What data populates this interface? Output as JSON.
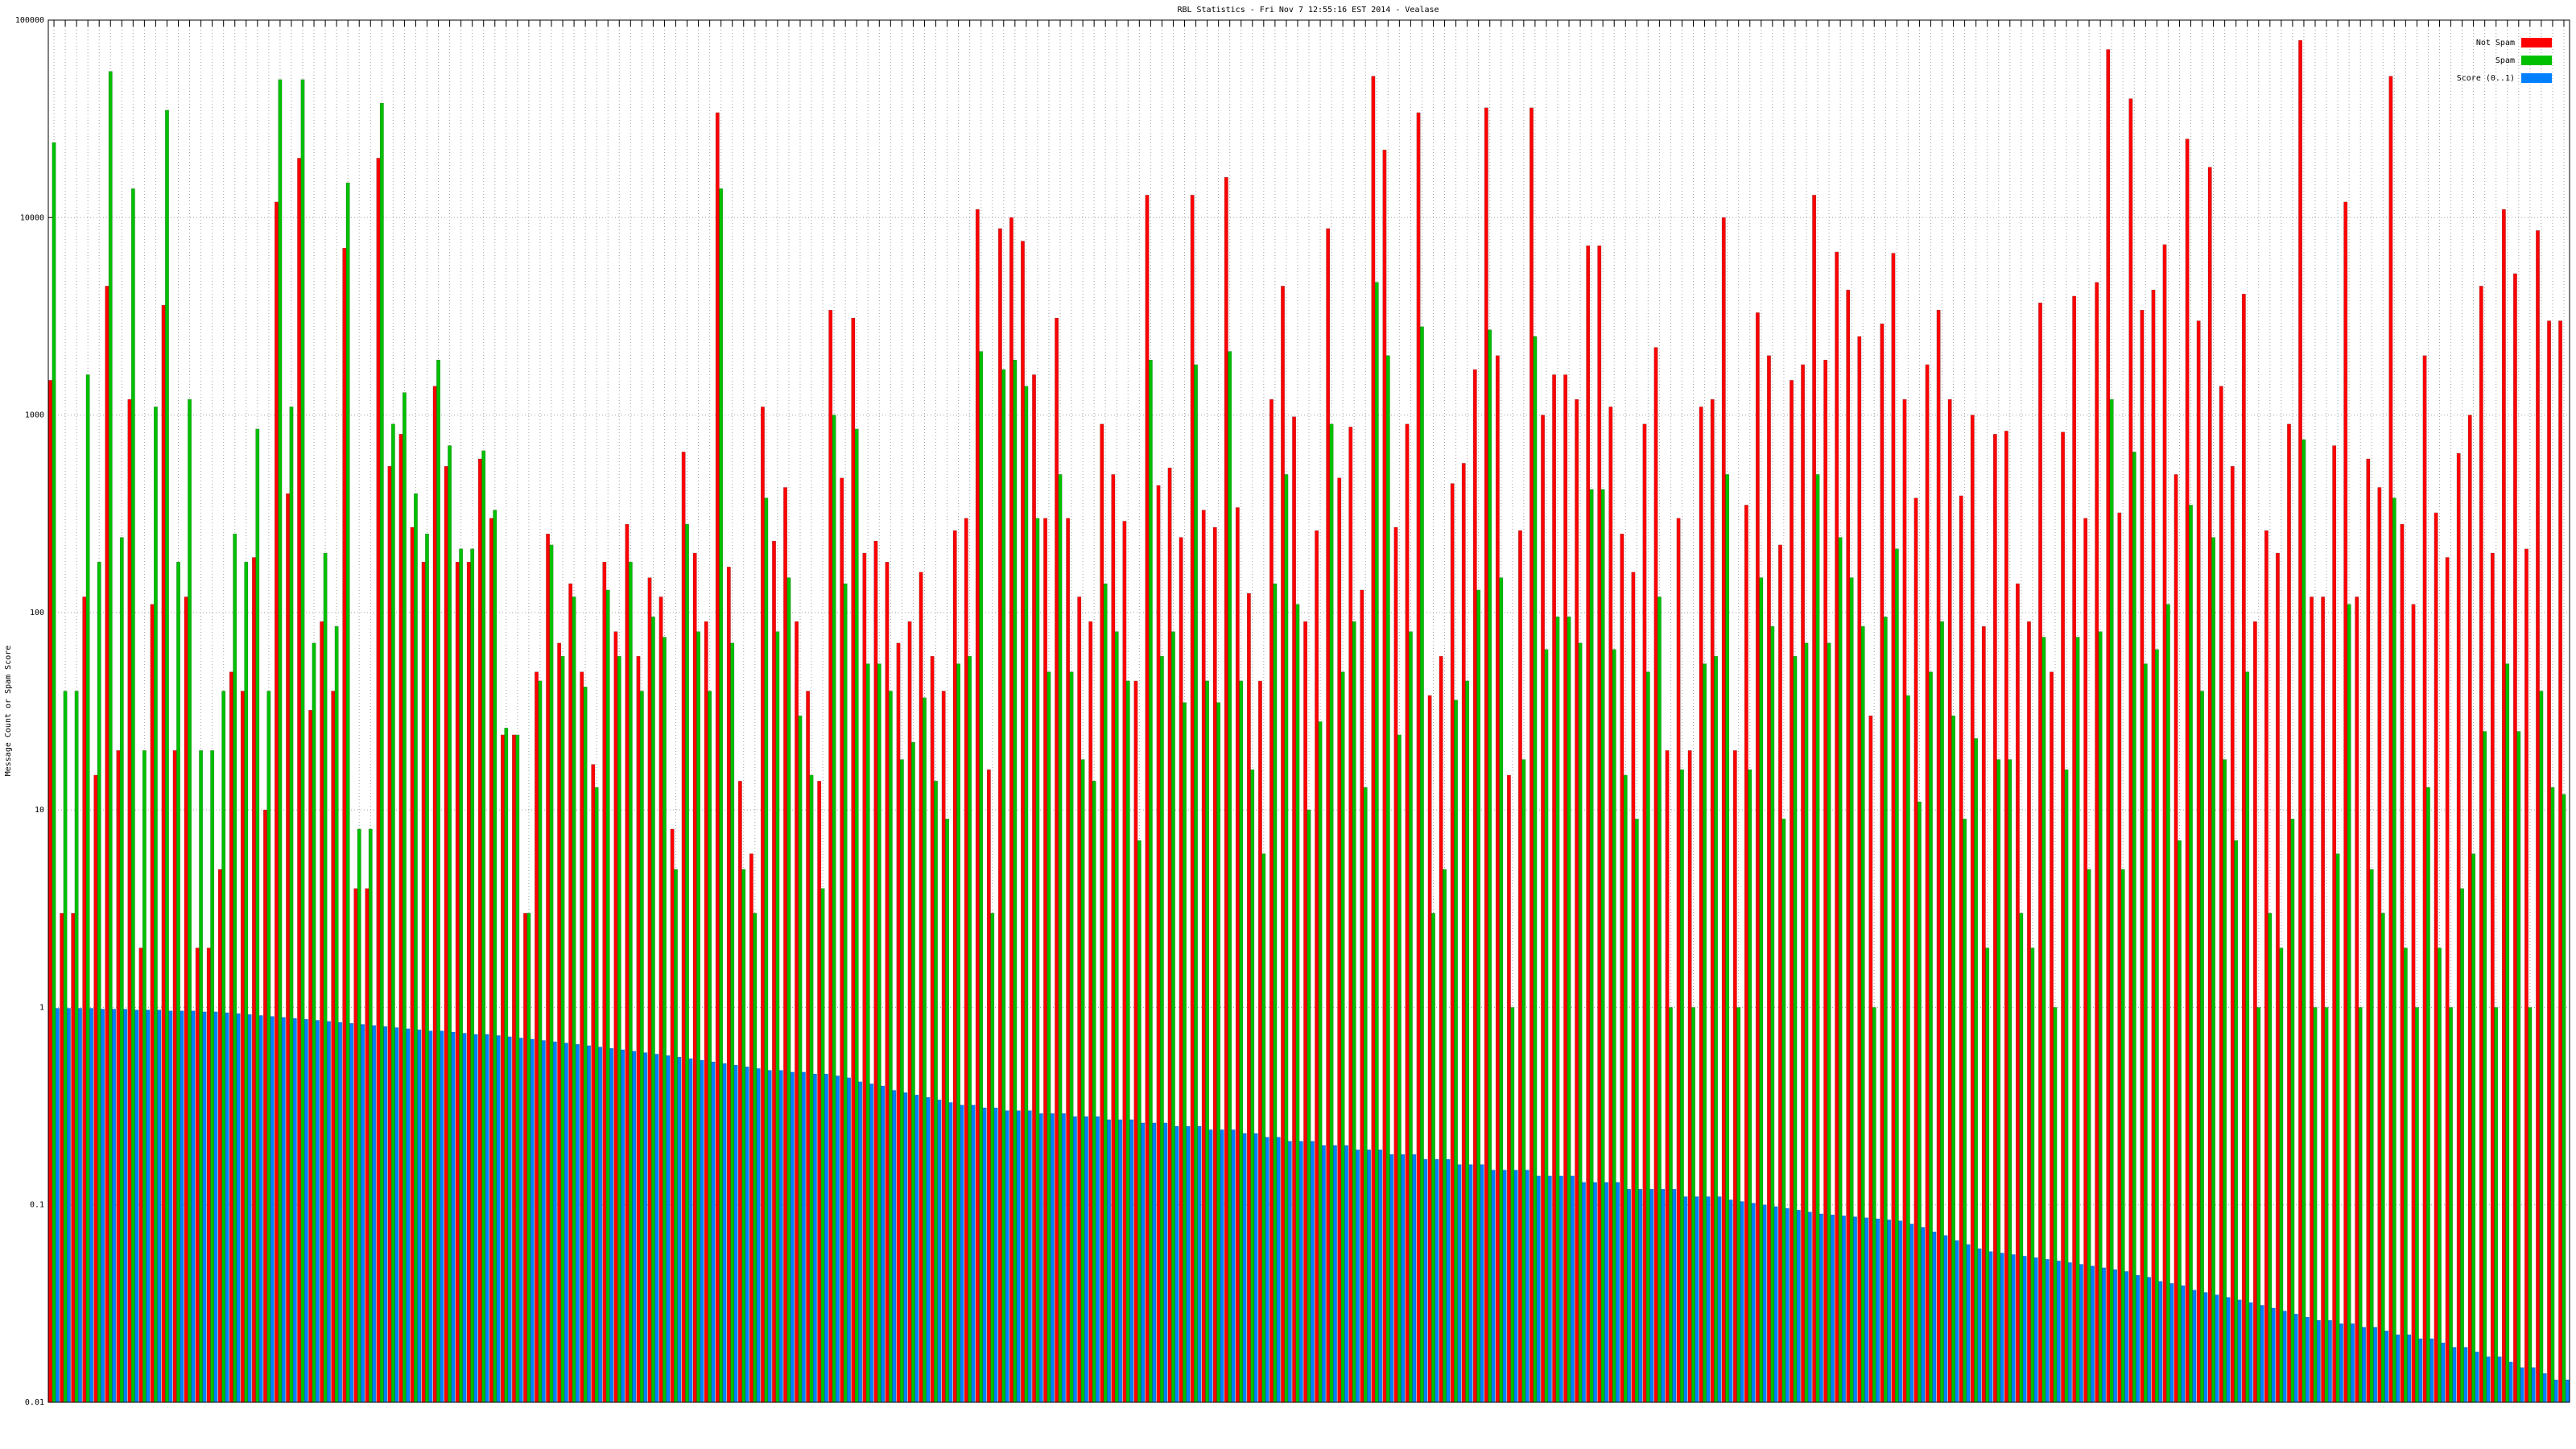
{
  "chart_data": {
    "type": "bar",
    "title": "RBL Statistics - Fri Nov  7 12:55:16 EST 2014 - Vealase",
    "y_label": "Message Count or Spam Score",
    "log_scale": true,
    "grid": true,
    "legend": "upper right",
    "ylim": [
      0.01,
      100000
    ],
    "yticks": [
      0.01,
      0.1,
      1,
      10,
      100,
      1000,
      10000,
      100000
    ],
    "categories": [
      null,
      null,
      null,
      null,
      null,
      null,
      null,
      null,
      null,
      null,
      null,
      null,
      null,
      null,
      null,
      null,
      null,
      null,
      null,
      null,
      null,
      null,
      null,
      null,
      null,
      null,
      null,
      null,
      null,
      null,
      null,
      null,
      null,
      null,
      null,
      null,
      null,
      null,
      null,
      null,
      null,
      null,
      null,
      null,
      null,
      null,
      null,
      null,
      null,
      null,
      null,
      null,
      null,
      null,
      null,
      null,
      null,
      null,
      null,
      null,
      null,
      null,
      null,
      null,
      null,
      null,
      null,
      null,
      null,
      null,
      null,
      null,
      null,
      null,
      null,
      null,
      null,
      null,
      null,
      null,
      null,
      null,
      null,
      null,
      null,
      null,
      null,
      null,
      null,
      null,
      null,
      null,
      null,
      null,
      null,
      null,
      null,
      null,
      null,
      null,
      null,
      null,
      null,
      null,
      null,
      null,
      null,
      null,
      null,
      null,
      null,
      null,
      null,
      null,
      null,
      null,
      null,
      null,
      null,
      null,
      null,
      null,
      null,
      null,
      null,
      null,
      null,
      null,
      null,
      null,
      null,
      null,
      null,
      null,
      null,
      null,
      null,
      null,
      null,
      null,
      null,
      null,
      null,
      null,
      null,
      null,
      null,
      null,
      null,
      null,
      null,
      null,
      null,
      null,
      null,
      null,
      null,
      null,
      null,
      null,
      null,
      null,
      null,
      null,
      null,
      null,
      null,
      null,
      null,
      null,
      null,
      null,
      null,
      null,
      null,
      null,
      null,
      null,
      null,
      null,
      null,
      null,
      null,
      null,
      null,
      null,
      null,
      null,
      null,
      null,
      null,
      null,
      null,
      null,
      null,
      null,
      null,
      null,
      null,
      null,
      null,
      null,
      null,
      null,
      null,
      null,
      null,
      null,
      null,
      null,
      null,
      null,
      null,
      null,
      null,
      null,
      null,
      null,
      null,
      null,
      null,
      null,
      null
    ],
    "series": [
      {
        "name": "Not Spam",
        "color": "#ff0000",
        "values": [
          1500,
          3,
          3,
          120,
          15,
          4500,
          20,
          1200,
          2,
          110,
          3600,
          20,
          120,
          2,
          2,
          5,
          50,
          40,
          190,
          10,
          12000,
          400,
          20000,
          32,
          90,
          40,
          7000,
          4,
          4,
          20000,
          550,
          800,
          270,
          180,
          1400,
          550,
          180,
          180,
          600,
          300,
          24,
          24,
          3,
          50,
          250,
          70,
          140,
          50,
          17,
          180,
          80,
          280,
          60,
          150,
          120,
          8,
          650,
          200,
          90,
          34000,
          170,
          14,
          6,
          1100,
          230,
          430,
          90,
          40,
          14,
          3400,
          480,
          3100,
          200,
          230,
          180,
          70,
          90,
          160,
          60,
          40,
          260,
          300,
          11000,
          16,
          8800,
          10000,
          7600,
          1600,
          300,
          3100,
          300,
          120,
          90,
          900,
          500,
          290,
          45,
          13000,
          440,
          540,
          240,
          13000,
          330,
          270,
          16000,
          340,
          125,
          45,
          1200,
          4500,
          980,
          90,
          260,
          8800,
          480,
          870,
          130,
          52000,
          22000,
          270,
          900,
          34000,
          38,
          60,
          450,
          570,
          1700,
          36000,
          2000,
          15,
          260,
          36000,
          1000,
          1600,
          1600,
          1200,
          7200,
          7200,
          1100,
          250,
          160,
          900,
          2200,
          20,
          300,
          20,
          1100,
          1200,
          10000,
          20,
          350,
          3300,
          2000,
          220,
          1500,
          1800,
          13000,
          1900,
          6700,
          4300,
          2500,
          30,
          2900,
          6600,
          1200,
          380,
          1800,
          3400,
          1200,
          390,
          1000,
          85,
          800,
          830,
          140,
          90,
          3700,
          50,
          820,
          4000,
          300,
          4700,
          71000,
          320,
          40000,
          3400,
          4300,
          7300,
          500,
          25000,
          3000,
          18000,
          1400,
          550,
          4100,
          90,
          260,
          200,
          900,
          79000,
          120,
          120,
          700,
          12000,
          120,
          600,
          430,
          52000,
          280,
          110,
          2000,
          320,
          190,
          640,
          1000,
          4500,
          200,
          11000,
          5200,
          210,
          8600,
          3000,
          3000
        ]
      },
      {
        "name": "Spam",
        "color": "#00c000",
        "values": [
          24000,
          40,
          40,
          1600,
          180,
          55000,
          240,
          14000,
          20,
          1100,
          35000,
          180,
          1200,
          20,
          20,
          40,
          250,
          180,
          850,
          40,
          50000,
          1100,
          50000,
          70,
          200,
          85,
          15000,
          8,
          8,
          38000,
          900,
          1300,
          400,
          250,
          1900,
          700,
          210,
          210,
          660,
          330,
          26,
          24,
          3,
          45,
          220,
          60,
          120,
          42,
          13,
          130,
          60,
          180,
          40,
          95,
          75,
          5,
          280,
          80,
          40,
          14000,
          70,
          5,
          3,
          380,
          80,
          150,
          30,
          15,
          4,
          1000,
          140,
          850,
          55,
          55,
          40,
          18,
          22,
          37,
          14,
          9,
          55,
          60,
          2100,
          3,
          1700,
          1900,
          1400,
          300,
          50,
          500,
          50,
          18,
          14,
          140,
          80,
          45,
          7,
          1900,
          60,
          80,
          35,
          1800,
          45,
          35,
          2100,
          45,
          16,
          6,
          140,
          500,
          110,
          10,
          28,
          900,
          50,
          90,
          13,
          4700,
          2000,
          24,
          80,
          2800,
          3,
          5,
          36,
          45,
          130,
          2700,
          150,
          1,
          18,
          2500,
          65,
          95,
          95,
          70,
          420,
          420,
          65,
          15,
          9,
          50,
          120,
          1,
          16,
          1,
          55,
          60,
          500,
          1,
          16,
          150,
          85,
          9,
          60,
          70,
          500,
          70,
          240,
          150,
          85,
          1,
          95,
          210,
          38,
          11,
          50,
          90,
          30,
          9,
          23,
          2,
          18,
          18,
          3,
          2,
          75,
          1,
          16,
          75,
          5,
          80,
          1200,
          5,
          650,
          55,
          65,
          110,
          7,
          350,
          40,
          240,
          18,
          7,
          50,
          1,
          3,
          2,
          9,
          750,
          1,
          1,
          6,
          110,
          1,
          5,
          3,
          380,
          2,
          1,
          13,
          2,
          1,
          4,
          6,
          25,
          1,
          55,
          25,
          1,
          40,
          13,
          12
        ]
      },
      {
        "name": "Score (0..1)",
        "color": "#0080ff",
        "values": [
          0.99,
          0.99,
          0.99,
          0.99,
          0.98,
          0.98,
          0.98,
          0.97,
          0.97,
          0.97,
          0.96,
          0.96,
          0.96,
          0.95,
          0.95,
          0.94,
          0.93,
          0.92,
          0.91,
          0.9,
          0.89,
          0.88,
          0.87,
          0.86,
          0.85,
          0.84,
          0.83,
          0.82,
          0.81,
          0.8,
          0.79,
          0.78,
          0.77,
          0.76,
          0.76,
          0.75,
          0.74,
          0.73,
          0.73,
          0.72,
          0.71,
          0.7,
          0.69,
          0.68,
          0.67,
          0.66,
          0.65,
          0.64,
          0.63,
          0.62,
          0.61,
          0.6,
          0.59,
          0.58,
          0.57,
          0.56,
          0.55,
          0.54,
          0.53,
          0.52,
          0.51,
          0.5,
          0.49,
          0.48,
          0.48,
          0.47,
          0.47,
          0.46,
          0.46,
          0.45,
          0.44,
          0.42,
          0.41,
          0.4,
          0.38,
          0.37,
          0.36,
          0.35,
          0.34,
          0.33,
          0.32,
          0.32,
          0.31,
          0.31,
          0.3,
          0.3,
          0.3,
          0.29,
          0.29,
          0.29,
          0.28,
          0.28,
          0.28,
          0.27,
          0.27,
          0.27,
          0.26,
          0.26,
          0.26,
          0.25,
          0.25,
          0.25,
          0.24,
          0.24,
          0.24,
          0.23,
          0.23,
          0.22,
          0.22,
          0.21,
          0.21,
          0.21,
          0.2,
          0.2,
          0.2,
          0.19,
          0.19,
          0.19,
          0.18,
          0.18,
          0.18,
          0.17,
          0.17,
          0.17,
          0.16,
          0.16,
          0.16,
          0.15,
          0.15,
          0.15,
          0.15,
          0.14,
          0.14,
          0.14,
          0.14,
          0.13,
          0.13,
          0.13,
          0.13,
          0.12,
          0.12,
          0.12,
          0.12,
          0.12,
          0.11,
          0.11,
          0.11,
          0.11,
          0.106,
          0.104,
          0.102,
          0.1,
          0.098,
          0.096,
          0.094,
          0.092,
          0.09,
          0.089,
          0.088,
          0.087,
          0.086,
          0.085,
          0.084,
          0.083,
          0.08,
          0.077,
          0.073,
          0.07,
          0.066,
          0.063,
          0.06,
          0.058,
          0.057,
          0.056,
          0.055,
          0.054,
          0.053,
          0.052,
          0.051,
          0.05,
          0.049,
          0.048,
          0.047,
          0.046,
          0.044,
          0.043,
          0.041,
          0.04,
          0.039,
          0.037,
          0.036,
          0.035,
          0.034,
          0.033,
          0.032,
          0.031,
          0.03,
          0.029,
          0.028,
          0.027,
          0.026,
          0.026,
          0.025,
          0.025,
          0.024,
          0.024,
          0.023,
          0.022,
          0.022,
          0.021,
          0.021,
          0.02,
          0.019,
          0.019,
          0.018,
          0.017,
          0.017,
          0.016,
          0.015,
          0.015,
          0.014,
          0.013,
          0.013
        ]
      }
    ]
  }
}
